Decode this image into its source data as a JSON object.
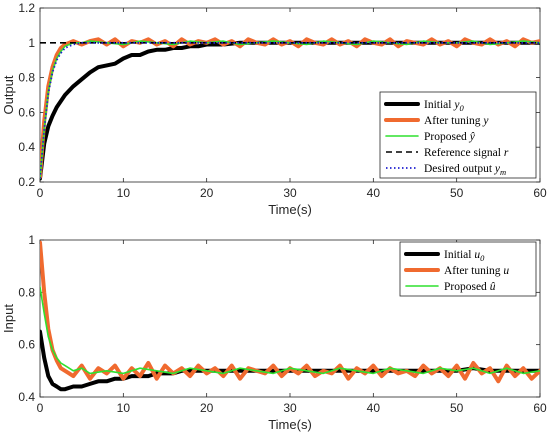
{
  "chart_data": [
    {
      "type": "line",
      "xlabel": "Time(s)",
      "ylabel": "Output",
      "xlim": [
        0,
        60
      ],
      "ylim": [
        0.2,
        1.2
      ],
      "xticks": [
        "0",
        "10",
        "20",
        "30",
        "40",
        "50",
        "60"
      ],
      "yticks": [
        "0.2",
        "0.4",
        "0.6",
        "0.8",
        "1",
        "1.2"
      ],
      "grid": false,
      "legend_placement": "bottom-right",
      "series": [
        {
          "name": "Initial y0",
          "color": "#000000",
          "style": "solid-thick",
          "x": [
            0,
            0.5,
            1,
            1.5,
            2,
            3,
            4,
            5,
            6,
            7,
            8,
            9,
            10,
            11,
            12,
            13,
            14,
            15,
            16,
            17,
            18,
            19,
            20,
            22,
            24,
            26,
            28,
            30,
            35,
            40,
            45,
            50,
            55,
            60
          ],
          "y": [
            0.22,
            0.42,
            0.52,
            0.58,
            0.63,
            0.7,
            0.75,
            0.79,
            0.83,
            0.86,
            0.87,
            0.88,
            0.91,
            0.93,
            0.93,
            0.95,
            0.96,
            0.96,
            0.97,
            0.97,
            0.98,
            0.98,
            0.99,
            0.99,
            1.0,
            1.0,
            1.0,
            1.0,
            1.0,
            1.0,
            1.0,
            1.0,
            1.0,
            1.0
          ]
        },
        {
          "name": "After tuning y",
          "color": "#f06a2f",
          "style": "solid-thick",
          "x": [
            0,
            0.5,
            1,
            1.5,
            2,
            2.5,
            3,
            3.5,
            4,
            5,
            6,
            7,
            8,
            9,
            10,
            11,
            12,
            13,
            14,
            15,
            16,
            17,
            18,
            19,
            20,
            21,
            22,
            23,
            24,
            25,
            26,
            27,
            28,
            29,
            30,
            31,
            32,
            33,
            34,
            35,
            36,
            37,
            38,
            39,
            40,
            41,
            42,
            43,
            44,
            45,
            46,
            47,
            48,
            49,
            50,
            51,
            52,
            53,
            54,
            55,
            56,
            57,
            58,
            59,
            60
          ],
          "y": [
            0.23,
            0.55,
            0.75,
            0.86,
            0.93,
            0.97,
            0.99,
            1.0,
            1.01,
            0.99,
            1.01,
            1.02,
            0.99,
            1.02,
            0.98,
            1.01,
            1.0,
            1.02,
            0.99,
            1.01,
            0.98,
            1.02,
            0.99,
            1.01,
            1.0,
            1.02,
            0.99,
            1.01,
            0.98,
            1.02,
            1.0,
            0.99,
            1.02,
            0.99,
            1.01,
            0.98,
            1.02,
            1.0,
            0.99,
            1.02,
            0.99,
            1.01,
            0.98,
            1.02,
            1.0,
            0.99,
            1.02,
            0.98,
            1.01,
            1.0,
            0.99,
            1.02,
            0.99,
            1.01,
            0.98,
            1.02,
            1.0,
            0.99,
            1.02,
            0.99,
            1.01,
            0.98,
            1.02,
            1.0,
            1.01
          ]
        },
        {
          "name": "Proposed ŷ",
          "color": "#2fe02f",
          "style": "solid-thin",
          "x": [
            0,
            0.5,
            1,
            1.5,
            2,
            2.5,
            3,
            3.5,
            4,
            5,
            6,
            8,
            10,
            12,
            14,
            16,
            18,
            20,
            22,
            24,
            26,
            28,
            30,
            32,
            34,
            36,
            38,
            40,
            42,
            44,
            46,
            48,
            50,
            52,
            54,
            56,
            58,
            60
          ],
          "y": [
            0.22,
            0.5,
            0.72,
            0.84,
            0.91,
            0.95,
            0.98,
            0.99,
            1.0,
            1.0,
            1.01,
            1.0,
            0.99,
            1.01,
            1.0,
            0.99,
            1.01,
            1.0,
            1.01,
            0.99,
            1.0,
            1.01,
            1.0,
            0.99,
            1.01,
            1.0,
            0.99,
            1.01,
            1.0,
            0.99,
            1.01,
            1.0,
            1.0,
            1.01,
            0.99,
            1.0,
            1.01,
            1.0
          ]
        },
        {
          "name": "Reference signal r",
          "color": "#000000",
          "style": "dashed",
          "x": [
            0,
            60
          ],
          "y": [
            1,
            1
          ]
        },
        {
          "name": "Desired output ym",
          "color": "#1f1fd0",
          "style": "dotted",
          "x": [
            0,
            0.5,
            1,
            1.5,
            2,
            2.5,
            3,
            3.5,
            4,
            5,
            6,
            10,
            20,
            30,
            40,
            50,
            60
          ],
          "y": [
            0.22,
            0.5,
            0.71,
            0.83,
            0.9,
            0.94,
            0.97,
            0.98,
            0.99,
            1.0,
            1.0,
            1.0,
            1.0,
            1.0,
            1.0,
            1.0,
            1.0
          ]
        }
      ]
    },
    {
      "type": "line",
      "xlabel": "Time(s)",
      "ylabel": "Input",
      "xlim": [
        0,
        60
      ],
      "ylim": [
        0.4,
        1.0
      ],
      "xticks": [
        "0",
        "10",
        "20",
        "30",
        "40",
        "50",
        "60"
      ],
      "yticks": [
        "0.4",
        "0.6",
        "0.8",
        "1"
      ],
      "grid": false,
      "legend_placement": "top-right",
      "series": [
        {
          "name": "Initial u0",
          "color": "#000000",
          "style": "solid-thick",
          "x": [
            0,
            0.5,
            1,
            1.5,
            2,
            2.5,
            3,
            4,
            5,
            6,
            7,
            8,
            9,
            10,
            11,
            12,
            13,
            14,
            15,
            16,
            17,
            18,
            19,
            20,
            22,
            24,
            26,
            28,
            30,
            32,
            34,
            36,
            38,
            40,
            42,
            44,
            46,
            48,
            50,
            52,
            54,
            56,
            58,
            60
          ],
          "y": [
            0.65,
            0.55,
            0.48,
            0.45,
            0.44,
            0.43,
            0.43,
            0.44,
            0.44,
            0.45,
            0.46,
            0.46,
            0.47,
            0.47,
            0.48,
            0.48,
            0.48,
            0.49,
            0.49,
            0.49,
            0.5,
            0.5,
            0.5,
            0.5,
            0.5,
            0.5,
            0.5,
            0.5,
            0.5,
            0.5,
            0.5,
            0.5,
            0.5,
            0.5,
            0.5,
            0.5,
            0.5,
            0.5,
            0.5,
            0.51,
            0.5,
            0.5,
            0.5,
            0.5
          ]
        },
        {
          "name": "After tuning u",
          "color": "#f06a2f",
          "style": "solid-thick",
          "x": [
            0,
            0.5,
            1,
            1.5,
            2,
            2.5,
            3,
            3.5,
            4,
            4.5,
            5,
            6,
            7,
            8,
            9,
            10,
            11,
            12,
            13,
            14,
            15,
            16,
            17,
            18,
            19,
            20,
            21,
            22,
            23,
            24,
            25,
            26,
            27,
            28,
            29,
            30,
            31,
            32,
            33,
            34,
            35,
            36,
            37,
            38,
            39,
            40,
            41,
            42,
            43,
            44,
            45,
            46,
            47,
            48,
            49,
            50,
            51,
            52,
            53,
            54,
            55,
            56,
            57,
            58,
            59,
            60
          ],
          "y": [
            0.99,
            0.8,
            0.66,
            0.58,
            0.54,
            0.51,
            0.5,
            0.49,
            0.48,
            0.5,
            0.52,
            0.47,
            0.51,
            0.49,
            0.52,
            0.47,
            0.51,
            0.48,
            0.53,
            0.47,
            0.52,
            0.49,
            0.51,
            0.48,
            0.52,
            0.49,
            0.51,
            0.48,
            0.52,
            0.47,
            0.51,
            0.5,
            0.49,
            0.52,
            0.48,
            0.51,
            0.49,
            0.52,
            0.48,
            0.5,
            0.49,
            0.52,
            0.47,
            0.51,
            0.49,
            0.52,
            0.48,
            0.51,
            0.49,
            0.5,
            0.48,
            0.52,
            0.49,
            0.51,
            0.48,
            0.52,
            0.47,
            0.53,
            0.49,
            0.51,
            0.46,
            0.52,
            0.48,
            0.51,
            0.47,
            0.5
          ]
        },
        {
          "name": "Proposed û",
          "color": "#2fe02f",
          "style": "solid-thin",
          "x": [
            0,
            0.5,
            1,
            1.5,
            2,
            2.5,
            3,
            3.5,
            4,
            5,
            6,
            8,
            10,
            12,
            14,
            16,
            18,
            20,
            22,
            24,
            26,
            28,
            30,
            32,
            34,
            36,
            38,
            40,
            42,
            44,
            46,
            48,
            50,
            52,
            54,
            56,
            58,
            60
          ],
          "y": [
            0.82,
            0.72,
            0.63,
            0.58,
            0.55,
            0.53,
            0.52,
            0.51,
            0.5,
            0.51,
            0.49,
            0.5,
            0.49,
            0.51,
            0.5,
            0.49,
            0.51,
            0.5,
            0.49,
            0.51,
            0.5,
            0.49,
            0.51,
            0.5,
            0.49,
            0.51,
            0.5,
            0.49,
            0.51,
            0.5,
            0.49,
            0.51,
            0.5,
            0.51,
            0.49,
            0.51,
            0.49,
            0.5
          ]
        }
      ]
    }
  ]
}
